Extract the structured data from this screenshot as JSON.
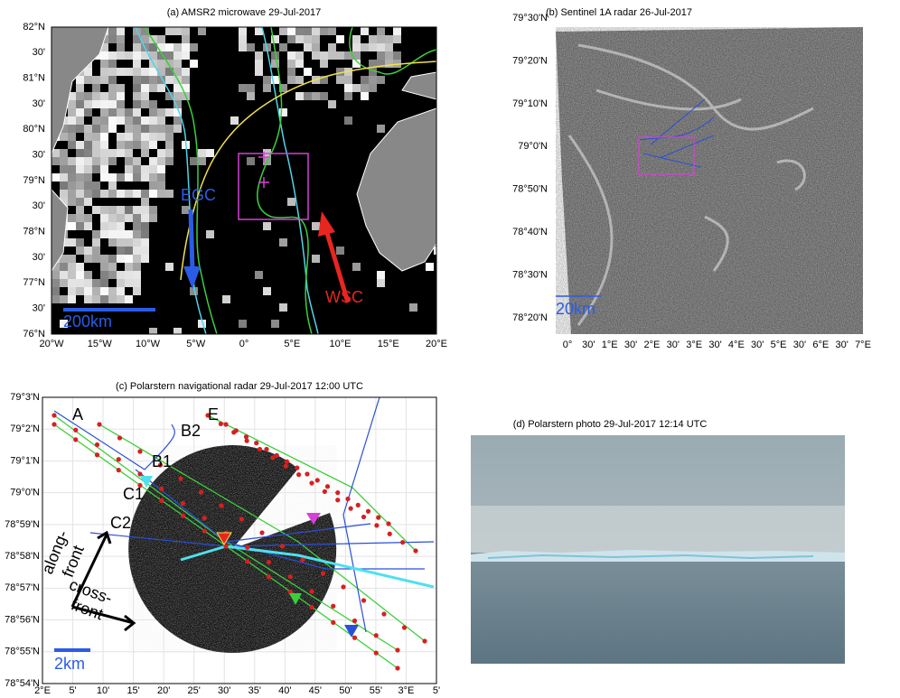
{
  "panels": [
    {
      "title": "(a) AMSR2 microwave 29-Jul-2017",
      "y_labels": [
        "82°N",
        "30'",
        "81°N",
        "30'",
        "80°N",
        "30'",
        "79°N",
        "30'",
        "78°N",
        "30'",
        "77°N",
        "30'",
        "76°N"
      ],
      "x_labels": [
        "20°W",
        "15°W",
        "10°W",
        "5°W",
        "0°",
        "5°E",
        "10°E",
        "15°E",
        "20°E"
      ],
      "annotations": [
        "EGC",
        "WSC",
        "200km"
      ]
    },
    {
      "title": "(b) Sentinel 1A radar 26-Jul-2017",
      "y_labels": [
        "79°30'N",
        "79°20'N",
        "79°10'N",
        "79°0'N",
        "78°50'N",
        "78°40'N",
        "78°30'N",
        "78°20'N"
      ],
      "x_labels": [
        "0°",
        "30'",
        "1°E",
        "30'",
        "2°E",
        "30'",
        "3°E",
        "30'",
        "4°E",
        "30'",
        "5°E",
        "30'",
        "6°E",
        "30'",
        "7°E"
      ],
      "annotations": [
        "20km"
      ]
    },
    {
      "title": "(c) Polarstern navigational radar 29-Jul-2017 12:00 UTC",
      "y_labels": [
        "79°3'N",
        "79°2'N",
        "79°1'N",
        "79°0'N",
        "78°59'N",
        "78°58'N",
        "78°57'N",
        "78°56'N",
        "78°55'N",
        "78°54'N"
      ],
      "x_labels": [
        "2°E",
        "5'",
        "10'",
        "15'",
        "20'",
        "25'",
        "30'",
        "35'",
        "40'",
        "45'",
        "50'",
        "55'",
        "3°E",
        "5'"
      ],
      "annotations": [
        "A",
        "B1",
        "B2",
        "C1",
        "C2",
        "E",
        "along-",
        "front",
        "cross-",
        "front",
        "2km"
      ]
    },
    {
      "title": "(d) Polarstern photo 29-Jul-2017 12:14 UTC"
    }
  ]
}
